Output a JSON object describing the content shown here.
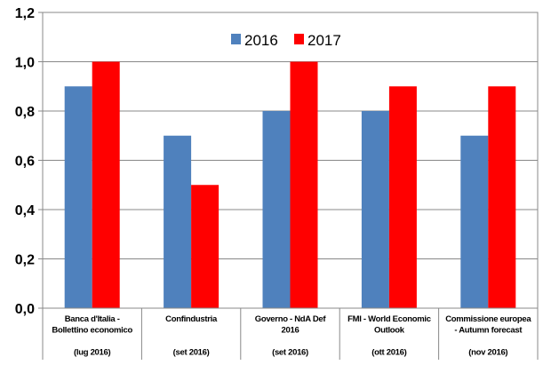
{
  "chart_data": {
    "type": "bar",
    "title": "",
    "xlabel": "",
    "ylabel": "",
    "ylim": [
      0,
      1.2
    ],
    "yticks": [
      "0,0",
      "0,2",
      "0,4",
      "0,6",
      "0,8",
      "1,0",
      "1,2"
    ],
    "ytick_values": [
      0,
      0.2,
      0.4,
      0.6,
      0.8,
      1.0,
      1.2
    ],
    "grid": true,
    "legend_position": "top-center",
    "categories": [
      [
        "Banca d'Italia -",
        "Bollettino economico",
        "",
        "(lug 2016)"
      ],
      [
        "Confindustria",
        "",
        "",
        "(set 2016)"
      ],
      [
        "Governo - NdA Def",
        "2016",
        "",
        "(set 2016)"
      ],
      [
        "FMI - World Economic",
        "Outlook",
        "",
        "(ott 2016)"
      ],
      [
        "Commissione europea",
        "- Autumn forecast",
        "",
        "(nov 2016)"
      ]
    ],
    "series": [
      {
        "name": "2016",
        "color": "#4f81bd",
        "values": [
          0.9,
          0.7,
          0.8,
          0.8,
          0.7
        ]
      },
      {
        "name": "2017",
        "color": "#ff0000",
        "values": [
          1.0,
          0.5,
          1.0,
          0.9,
          0.9
        ]
      }
    ]
  }
}
